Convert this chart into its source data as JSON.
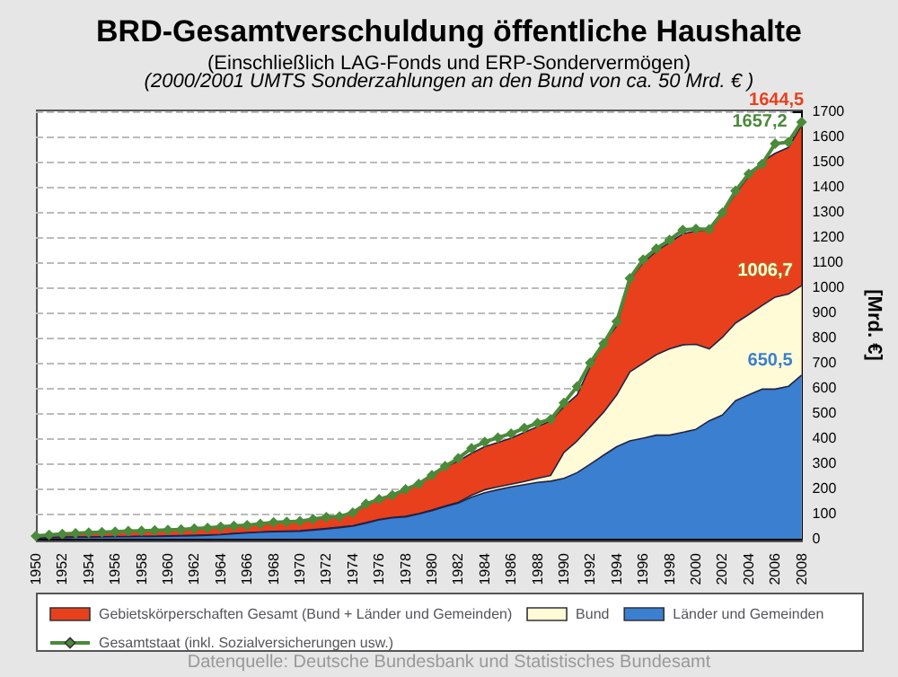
{
  "chart_data": {
    "type": "area",
    "title": "BRD-Gesamtverschuldung öffentliche Haushalte",
    "subtitle": "(Einschließlich LAG-Fonds und ERP-Sondervermögen)",
    "annotations": [
      "(2000/2001 UMTS Sonderzahlungen an den Bund von ca. 50 Mrd. € )",
      "Datenquelle: Deutsche Bundesbank und Statistisches Bundesamt"
    ],
    "ylabel": "[Mrd. €]",
    "categories": [
      "1950",
      null,
      "1952",
      null,
      "1954",
      null,
      "1956",
      null,
      "1958",
      null,
      "1960",
      null,
      "1962",
      null,
      "1964",
      null,
      "1966",
      null,
      "1968",
      null,
      "1970",
      null,
      "1972",
      null,
      "1974",
      null,
      "1976",
      null,
      "1978",
      null,
      "1980",
      null,
      "1982",
      null,
      "1984",
      null,
      "1986",
      null,
      "1988",
      null,
      "1990",
      null,
      "1992",
      null,
      "1994",
      null,
      "1996",
      null,
      "1998",
      null,
      "2000",
      null,
      "2002",
      null,
      "2004",
      null,
      "2006",
      null,
      "2008"
    ],
    "series": [
      {
        "name": "Gebietskörperschaften Gesamt (Bund + Länder und Gemeinden)",
        "color": "#e8401c",
        "values": [
          10,
          14,
          18,
          20,
          23,
          25,
          27,
          29,
          30,
          32,
          34,
          36,
          39,
          42,
          46,
          50,
          53,
          58,
          64,
          66,
          69,
          77,
          85,
          87,
          103,
          137,
          156,
          172,
          195,
          217,
          252,
          286,
          309,
          340,
          366,
          383,
          400,
          423,
          446,
          469,
          526,
          572,
          686,
          778,
          847,
          1030,
          1098,
          1144,
          1178,
          1213,
          1224,
          1229,
          1293,
          1373,
          1442,
          1499,
          1533,
          1556,
          1644.5
        ],
        "value_labels": [
          null,
          null,
          null,
          null,
          null,
          null,
          null,
          null,
          null,
          null,
          null,
          null,
          null,
          null,
          null,
          null,
          null,
          null,
          null,
          null,
          null,
          null,
          null,
          null,
          null,
          null,
          null,
          null,
          null,
          null,
          null,
          null,
          null,
          null,
          null,
          null,
          null,
          null,
          null,
          null,
          null,
          null,
          null,
          null,
          null,
          null,
          null,
          null,
          null,
          null,
          null,
          null,
          null,
          null,
          null,
          null,
          null,
          null,
          "1644,5"
        ]
      },
      {
        "name": "Bund",
        "color": "#fffbd6",
        "values": [
          4,
          5,
          6,
          7,
          7,
          8,
          9,
          9,
          10,
          10,
          11,
          12,
          13,
          15,
          17,
          21,
          24,
          27,
          29,
          30,
          32,
          36,
          41,
          46,
          52,
          64,
          77,
          85,
          89,
          100,
          114,
          130,
          145,
          173,
          195,
          206,
          217,
          228,
          240,
          252,
          343,
          389,
          446,
          503,
          572,
          664,
          698,
          732,
          755,
          771,
          773,
          755,
          801,
          858,
          892,
          927,
          961,
          973,
          1006.7
        ],
        "value_labels": [
          null,
          null,
          null,
          null,
          null,
          null,
          null,
          null,
          null,
          null,
          null,
          null,
          null,
          null,
          null,
          null,
          null,
          null,
          null,
          null,
          null,
          null,
          null,
          null,
          null,
          null,
          null,
          null,
          null,
          null,
          null,
          null,
          null,
          null,
          null,
          null,
          null,
          null,
          null,
          null,
          null,
          null,
          null,
          null,
          null,
          null,
          null,
          null,
          null,
          null,
          null,
          null,
          null,
          null,
          null,
          null,
          null,
          null,
          "1006,7"
        ]
      },
      {
        "name": "Länder und Gemeinden",
        "color": "#3a7fd0",
        "values": [
          3,
          4,
          5,
          6,
          6,
          7,
          8,
          8,
          9,
          9,
          10,
          11,
          12,
          14,
          16,
          20,
          23,
          26,
          28,
          29,
          30,
          34,
          39,
          44,
          50,
          62,
          75,
          83,
          87,
          98,
          112,
          128,
          142,
          165,
          183,
          195,
          206,
          215,
          224,
          229,
          240,
          263,
          297,
          332,
          366,
          389,
          400,
          412,
          412,
          423,
          435,
          469,
          492,
          549,
          572,
          595,
          595,
          606,
          650.5
        ],
        "value_labels": [
          null,
          null,
          null,
          null,
          null,
          null,
          null,
          null,
          null,
          null,
          null,
          null,
          null,
          null,
          null,
          null,
          null,
          null,
          null,
          null,
          null,
          null,
          null,
          null,
          null,
          null,
          null,
          null,
          null,
          null,
          null,
          null,
          null,
          null,
          null,
          null,
          null,
          null,
          null,
          null,
          null,
          null,
          null,
          null,
          null,
          null,
          null,
          null,
          null,
          null,
          null,
          null,
          null,
          null,
          null,
          null,
          null,
          null,
          "650,5"
        ]
      },
      {
        "name": "Gesamtstaat (inkl. Sozialversicherungen usw.)",
        "type": "line",
        "color": "#4a8a3a",
        "marker": "diamond",
        "values": [
          11,
          15,
          19,
          21,
          24,
          26,
          28,
          30,
          31,
          33,
          35,
          37,
          40,
          43,
          47,
          51,
          54,
          59,
          65,
          67,
          70,
          78,
          86,
          88,
          104,
          138,
          157,
          173,
          196,
          218,
          253,
          288,
          320,
          360,
          385,
          402,
          418,
          440,
          460,
          475,
          540,
          605,
          700,
          776,
          864,
          1036,
          1110,
          1154,
          1188,
          1228,
          1232,
          1230,
          1296,
          1384,
          1451,
          1490,
          1571,
          1578,
          1657.2
        ],
        "value_labels": [
          null,
          null,
          null,
          null,
          null,
          null,
          null,
          null,
          null,
          null,
          null,
          null,
          null,
          null,
          null,
          null,
          null,
          null,
          null,
          null,
          null,
          null,
          null,
          null,
          null,
          null,
          null,
          null,
          null,
          null,
          null,
          null,
          null,
          null,
          null,
          null,
          null,
          null,
          null,
          null,
          null,
          null,
          null,
          null,
          null,
          null,
          null,
          null,
          null,
          null,
          null,
          null,
          null,
          null,
          null,
          null,
          null,
          null,
          "1657,2"
        ]
      }
    ],
    "ylim": [
      0,
      1700
    ],
    "yticks": [
      0,
      100,
      200,
      300,
      400,
      500,
      600,
      700,
      800,
      900,
      1000,
      1100,
      1200,
      1300,
      1400,
      1500,
      1600,
      1700
    ],
    "grid": "y",
    "legend": "bottom"
  }
}
